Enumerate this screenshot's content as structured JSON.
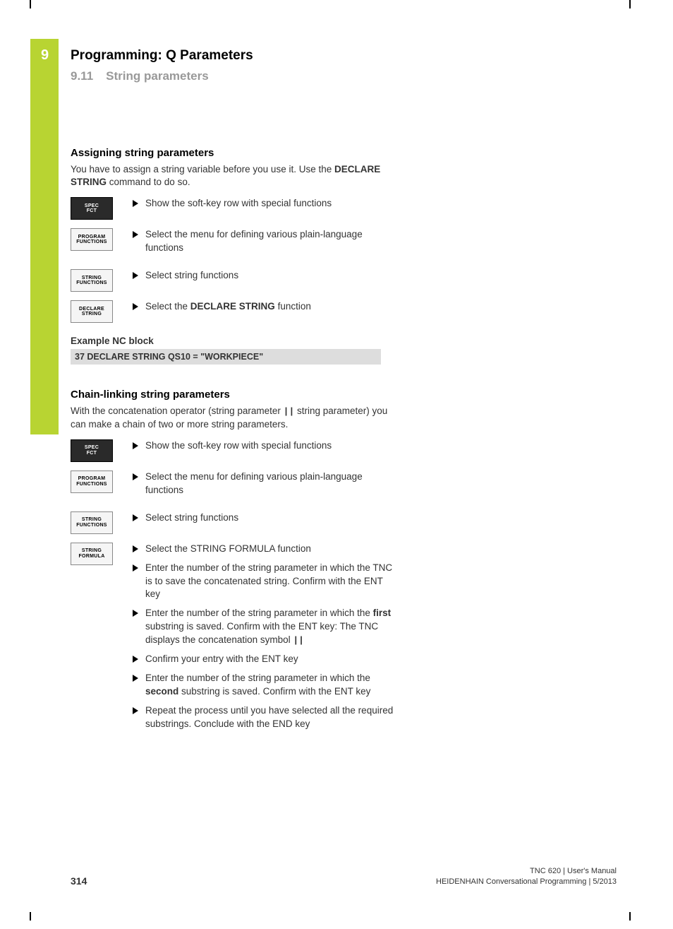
{
  "chapter": {
    "number": "9",
    "title": "Programming: Q Parameters"
  },
  "section": {
    "number": "9.11",
    "title": "String parameters"
  },
  "sec1": {
    "heading": "Assigning string parameters",
    "intro_pre": "You have to assign a string variable before you use it. Use the ",
    "intro_bold": "DECLARE STRING",
    "intro_post": " command to do so.",
    "buttons": {
      "spec_fct_l1": "SPEC",
      "spec_fct_l2": "FCT",
      "prog_l1": "PROGRAM",
      "prog_l2": "FUNCTIONS",
      "strfn_l1": "STRING",
      "strfn_l2": "FUNCTIONS",
      "decl_l1": "DECLARE",
      "decl_l2": "STRING"
    },
    "steps": {
      "s1": "Show the soft-key row with special functions",
      "s2": "Select the menu for defining various plain-language functions",
      "s3": "Select string functions",
      "s4_pre": "Select the ",
      "s4_bold": "DECLARE STRING",
      "s4_post": " function"
    },
    "example_label": "Example NC block",
    "example_code": "37 DECLARE STRING QS10 = \"WORKPIECE\""
  },
  "sec2": {
    "heading": "Chain-linking string parameters",
    "intro_pre": "With the concatenation operator (string parameter ",
    "intro_op": "||",
    "intro_post": " string parameter) you can make a chain of two or more string parameters.",
    "buttons": {
      "spec_fct_l1": "SPEC",
      "spec_fct_l2": "FCT",
      "prog_l1": "PROGRAM",
      "prog_l2": "FUNCTIONS",
      "strfn_l1": "STRING",
      "strfn_l2": "FUNCTIONS",
      "strform_l1": "STRING",
      "strform_l2": "FORMULA"
    },
    "steps": {
      "s1": "Show the soft-key row with special functions",
      "s2": "Select the menu for defining various plain-language functions",
      "s3": "Select string functions",
      "s4": "Select the STRING FORMULA function",
      "s5": "Enter the number of the string parameter in which the TNC is to save the concatenated string. Confirm with the ENT key",
      "s6_pre": "Enter the number of the string parameter in which the ",
      "s6_bold": "first",
      "s6_mid": " substring is saved. Confirm with the ENT key: The TNC displays the concatenation symbol ",
      "s6_op": "||",
      "s7": "Confirm your entry with the ENT key",
      "s8_pre": "Enter the number of the string parameter in which the ",
      "s8_bold": "second",
      "s8_post": " substring is saved. Confirm with the ENT key",
      "s9": "Repeat the process until you have selected all the required substrings. Conclude with the END key"
    }
  },
  "footer": {
    "page": "314",
    "line1": "TNC 620 | User's Manual",
    "line2": "HEIDENHAIN Conversational Programming | 5/2013"
  },
  "style": {
    "accent": "#b8d432",
    "softkey_dark_bg": "#2a2a2a",
    "softkey_light_bg": "#f5f5f5",
    "codeblock_bg": "#dddddd",
    "muted": "#999999"
  }
}
